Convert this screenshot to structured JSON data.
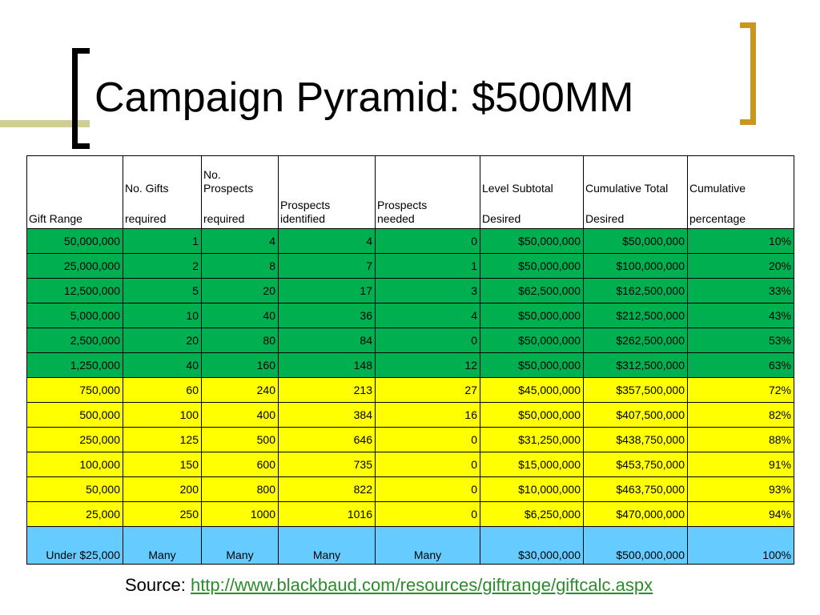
{
  "title": "Campaign Pyramid: $500MM",
  "colors": {
    "tier1": "#00b050",
    "tier2": "#ffff00",
    "tier3": "#66ccff",
    "accent_gold": "#c9971f",
    "accent_olive": "#cfcf94",
    "link": "#2d8a2d"
  },
  "table": {
    "headers": [
      [
        "Gift Range"
      ],
      [
        "No. Gifts",
        "required"
      ],
      [
        "No.",
        "Prospects",
        "required"
      ],
      [
        "Prospects",
        "identified"
      ],
      [
        "Prospects",
        "needed"
      ],
      [
        "Level Subtotal",
        "Desired"
      ],
      [
        "Cumulative Total",
        "Desired"
      ],
      [
        "Cumulative",
        "percentage"
      ]
    ],
    "rows": [
      {
        "tier": "green",
        "cells": [
          "50,000,000",
          "1",
          "4",
          "4",
          "0",
          "$50,000,000",
          "$50,000,000",
          "10%"
        ]
      },
      {
        "tier": "green",
        "cells": [
          "25,000,000",
          "2",
          "8",
          "7",
          "1",
          "$50,000,000",
          "$100,000,000",
          "20%"
        ]
      },
      {
        "tier": "green",
        "cells": [
          "12,500,000",
          "5",
          "20",
          "17",
          "3",
          "$62,500,000",
          "$162,500,000",
          "33%"
        ]
      },
      {
        "tier": "green",
        "cells": [
          "5,000,000",
          "10",
          "40",
          "36",
          "4",
          "$50,000,000",
          "$212,500,000",
          "43%"
        ]
      },
      {
        "tier": "green",
        "cells": [
          "2,500,000",
          "20",
          "80",
          "84",
          "0",
          "$50,000,000",
          "$262,500,000",
          "53%"
        ]
      },
      {
        "tier": "green",
        "cells": [
          "1,250,000",
          "40",
          "160",
          "148",
          "12",
          "$50,000,000",
          "$312,500,000",
          "63%"
        ]
      },
      {
        "tier": "yellow",
        "cells": [
          "750,000",
          "60",
          "240",
          "213",
          "27",
          "$45,000,000",
          "$357,500,000",
          "72%"
        ]
      },
      {
        "tier": "yellow",
        "cells": [
          "500,000",
          "100",
          "400",
          "384",
          "16",
          "$50,000,000",
          "$407,500,000",
          "82%"
        ]
      },
      {
        "tier": "yellow",
        "cells": [
          "250,000",
          "125",
          "500",
          "646",
          "0",
          "$31,250,000",
          "$438,750,000",
          "88%"
        ]
      },
      {
        "tier": "yellow",
        "cells": [
          "100,000",
          "150",
          "600",
          "735",
          "0",
          "$15,000,000",
          "$453,750,000",
          "91%"
        ]
      },
      {
        "tier": "yellow",
        "cells": [
          "50,000",
          "200",
          "800",
          "822",
          "0",
          "$10,000,000",
          "$463,750,000",
          "93%"
        ]
      },
      {
        "tier": "yellow",
        "cells": [
          "25,000",
          "250",
          "1000",
          "1016",
          "0",
          "$6,250,000",
          "$470,000,000",
          "94%"
        ]
      },
      {
        "tier": "blue",
        "cells": [
          "Under $25,000",
          "Many",
          "Many",
          "Many",
          "Many",
          "$30,000,000",
          "$500,000,000",
          "100%"
        ]
      }
    ]
  },
  "source": {
    "label": "Source:",
    "link_text": "http://www.blackbaud.com/resources/giftrange/giftcalc.aspx"
  }
}
